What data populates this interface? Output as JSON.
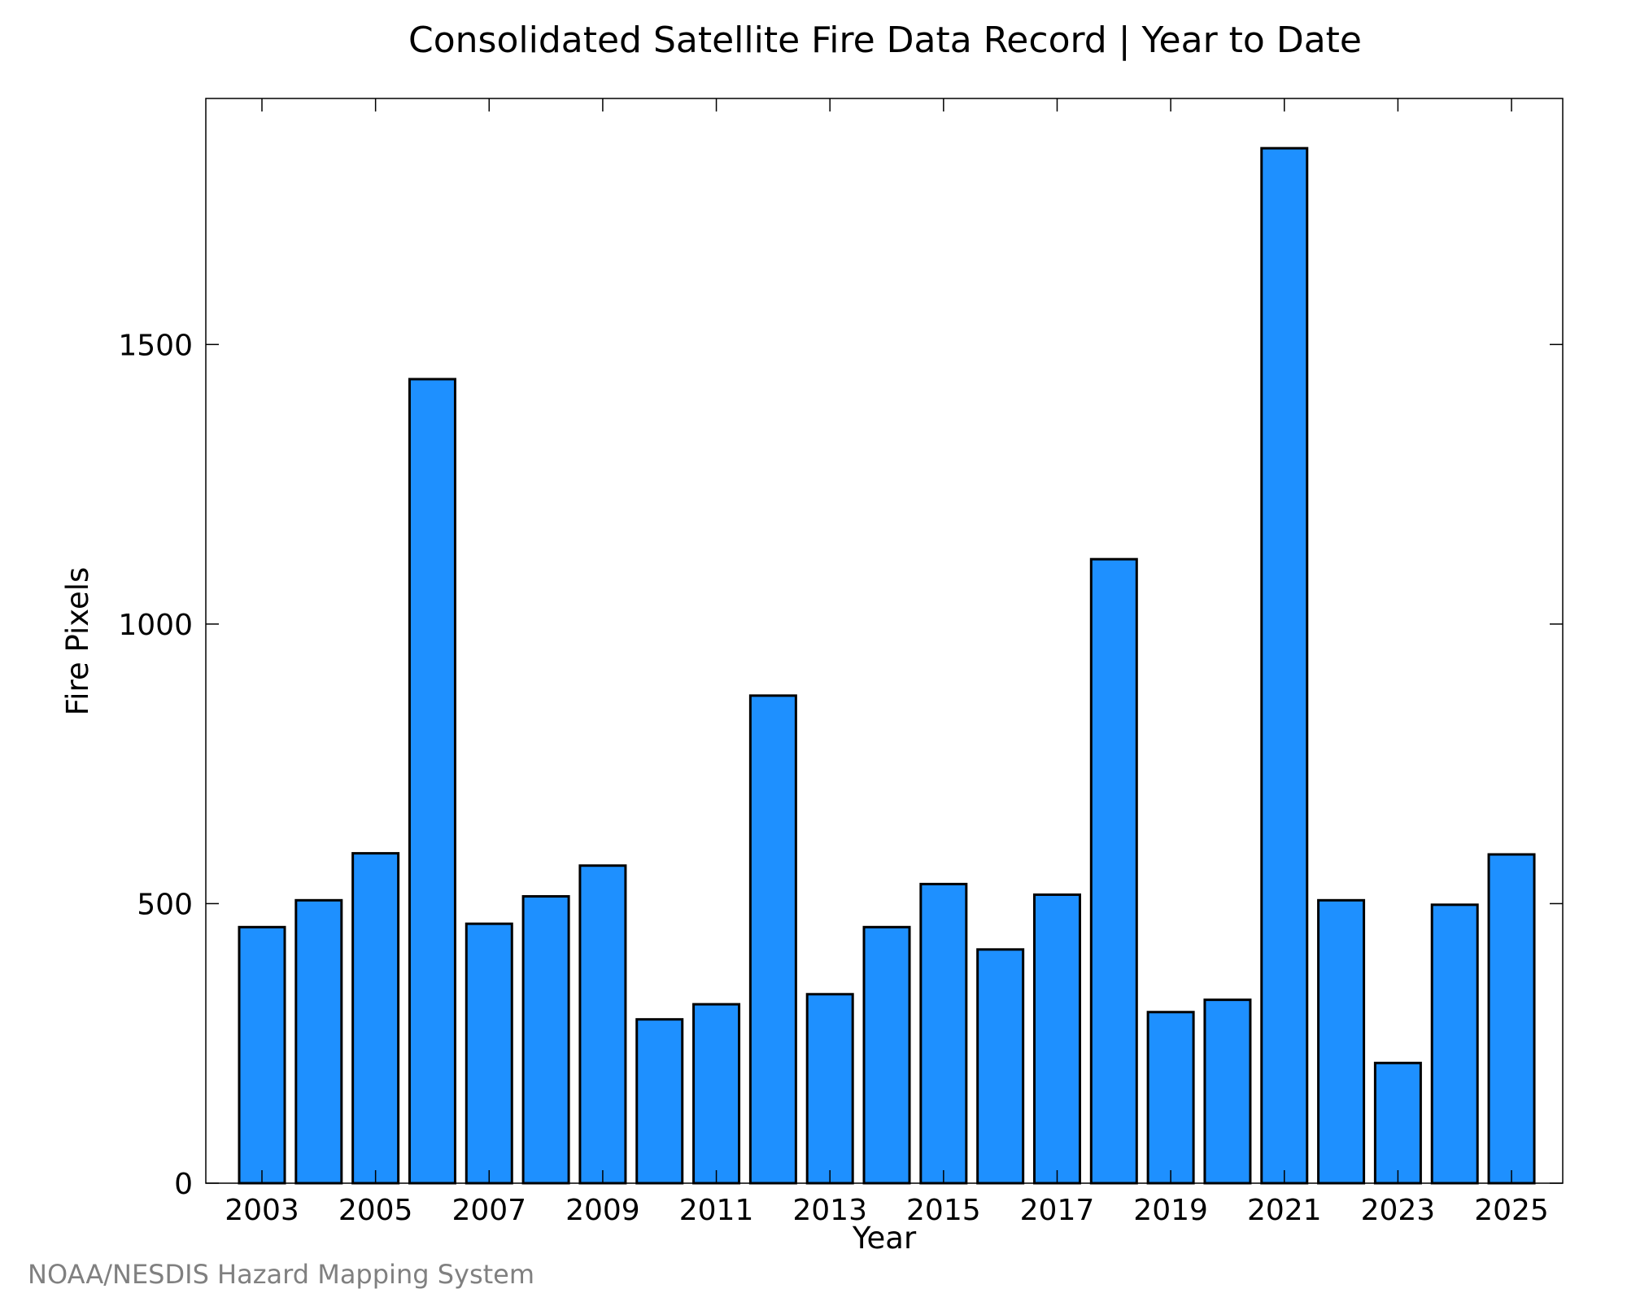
{
  "chart_data": {
    "type": "bar",
    "title": "Consolidated Satellite Fire Data Record | Year to Date",
    "xlabel": "Year",
    "ylabel": "Fire Pixels",
    "categories": [
      "2003",
      "2004",
      "2005",
      "2006",
      "2007",
      "2008",
      "2009",
      "2010",
      "2011",
      "2012",
      "2013",
      "2014",
      "2015",
      "2016",
      "2017",
      "2018",
      "2019",
      "2020",
      "2021",
      "2022",
      "2023",
      "2024",
      "2025"
    ],
    "values": [
      458,
      506,
      590,
      1438,
      464,
      513,
      568,
      293,
      320,
      872,
      338,
      458,
      535,
      418,
      516,
      1116,
      306,
      328,
      1851,
      506,
      215,
      498,
      588
    ],
    "x_tick_labels": [
      "2003",
      "2005",
      "2007",
      "2009",
      "2011",
      "2013",
      "2015",
      "2017",
      "2019",
      "2021",
      "2023",
      "2025"
    ],
    "y_ticks": [
      0,
      500,
      1000,
      1500
    ],
    "ylim": [
      0,
      1940
    ],
    "grid": false,
    "bar_color": "#1e90ff",
    "bar_edge_color": "#000000",
    "credit": "NOAA/NESDIS Hazard Mapping System"
  }
}
